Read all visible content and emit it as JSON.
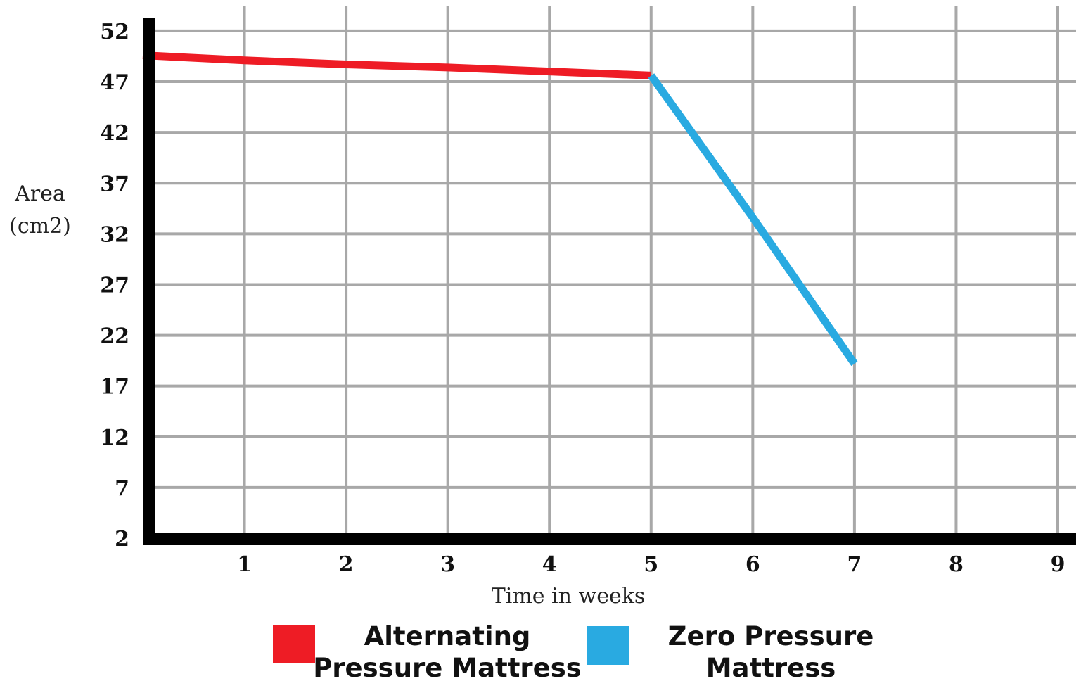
{
  "chart_data": {
    "type": "line",
    "title": "",
    "xlabel": "Time in weeks",
    "ylabel": [
      "Area",
      "(cm2)"
    ],
    "xlim": [
      0,
      9
    ],
    "ylim": [
      2,
      54.7
    ],
    "x_ticks": [
      "1",
      "2",
      "3",
      "4",
      "5",
      "6",
      "7",
      "8",
      "9"
    ],
    "y_ticks": [
      "2",
      "7",
      "12",
      "17",
      "22",
      "27",
      "32",
      "37",
      "42",
      "47",
      "52"
    ],
    "grid": true,
    "legend_position": "bottom",
    "series": [
      {
        "name": [
          "Alternating",
          "Pressure Mattress"
        ],
        "color": "#ee1c25",
        "points": [
          [
            0,
            49.6
          ],
          [
            1,
            49.1
          ],
          [
            2,
            48.7
          ],
          [
            3,
            48.4
          ],
          [
            4,
            48.0
          ],
          [
            5,
            47.6
          ]
        ]
      },
      {
        "name": [
          "Zero Pressure",
          "Mattress"
        ],
        "color": "#29aae1",
        "points": [
          [
            5,
            47.6
          ],
          [
            6,
            33.6
          ],
          [
            7,
            19.2
          ]
        ]
      }
    ]
  }
}
